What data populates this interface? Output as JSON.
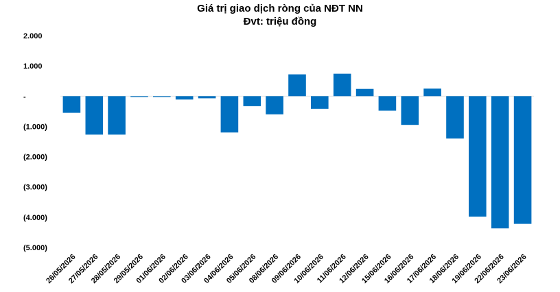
{
  "chart_data": {
    "type": "bar",
    "title": "Giá trị giao dịch ròng của NĐT NN",
    "subtitle": "Đvt: triệu đồng",
    "categories": [
      "26/05/2026",
      "27/05/2026",
      "28/05/2026",
      "29/05/2026",
      "01/06/2026",
      "02/06/2026",
      "03/06/2026",
      "04/06/2026",
      "05/06/2026",
      "08/06/2026",
      "09/06/2026",
      "10/06/2026",
      "11/06/2026",
      "12/06/2026",
      "15/06/2026",
      "16/06/2026",
      "17/06/2026",
      "18/06/2026",
      "19/06/2026",
      "22/06/2026",
      "23/06/2026"
    ],
    "values": [
      -550,
      -1270,
      -1270,
      -20,
      -20,
      -110,
      -70,
      -1200,
      -330,
      -600,
      720,
      -420,
      740,
      240,
      -480,
      -950,
      250,
      -1400,
      -3980,
      -4370,
      -4220
    ],
    "ylim": [
      -5000,
      2000
    ],
    "yticks": [
      2000,
      1000,
      0,
      -1000,
      -2000,
      -3000,
      -4000,
      -5000
    ],
    "ytick_labels": [
      "2.000",
      "1.000",
      "-",
      "(1.000)",
      "(2.000)",
      "(3.000)",
      "(4.000)",
      "(5.000)"
    ],
    "bar_color": "#0070C0",
    "grid": false,
    "legend": "none"
  }
}
